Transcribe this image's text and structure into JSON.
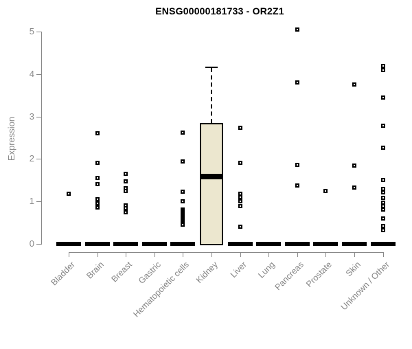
{
  "title": "ENSG00000181733 - OR2Z1",
  "y_axis": {
    "label": "Expression",
    "tick_labels": [
      "0",
      "1",
      "2",
      "3",
      "4",
      "5"
    ],
    "tick_values": [
      0,
      1,
      2,
      3,
      4,
      5
    ]
  },
  "colors": {
    "axis": "#888888",
    "tick_text": "#8a8a8a",
    "title_text": "#000000",
    "box_fill": "#ece7cf",
    "box_border": "#000000",
    "point": "#000000"
  },
  "chart_data": {
    "type": "boxplot",
    "title": "ENSG00000181733 - OR2Z1",
    "xlabel": "",
    "ylabel": "Expression",
    "ylim": [
      0,
      5
    ],
    "grid": false,
    "categories": [
      "Bladder",
      "Brain",
      "Breast",
      "Gastric",
      "Hematopoietic cells",
      "Kidney",
      "Liver",
      "Lung",
      "Pancreas",
      "Prostate",
      "Skin",
      "Unknown / Other"
    ],
    "boxes": [
      {
        "category": "Bladder",
        "q1": 0,
        "median": 0,
        "q3": 0,
        "whisker_high": 0,
        "outliers": [
          1.18
        ]
      },
      {
        "category": "Brain",
        "q1": 0,
        "median": 0,
        "q3": 0,
        "whisker_high": 0,
        "outliers": [
          2.6,
          1.91,
          1.55,
          1.41,
          1.05,
          0.95,
          0.86
        ]
      },
      {
        "category": "Breast",
        "q1": 0,
        "median": 0,
        "q3": 0,
        "whisker_high": 0,
        "outliers": [
          1.65,
          1.47,
          1.31,
          1.25,
          0.91,
          0.84,
          0.74
        ]
      },
      {
        "category": "Gastric",
        "q1": 0,
        "median": 0,
        "q3": 0,
        "whisker_high": 0,
        "outliers": []
      },
      {
        "category": "Hematopoietic cells",
        "q1": 0,
        "median": 0,
        "q3": 0,
        "whisker_high": 0,
        "outliers": [
          2.62,
          1.94,
          1.23,
          1.0,
          0.81,
          0.78,
          0.75,
          0.72,
          0.68,
          0.65,
          0.62,
          0.58,
          0.55,
          0.52,
          0.48,
          0.45
        ]
      },
      {
        "category": "Kidney",
        "q1": 0,
        "median": 1.58,
        "q3": 2.85,
        "whisker_high": 4.16,
        "outliers": []
      },
      {
        "category": "Liver",
        "q1": 0,
        "median": 0,
        "q3": 0,
        "whisker_high": 0,
        "outliers": [
          2.73,
          1.91,
          1.18,
          1.1,
          1.0,
          0.89,
          0.4
        ]
      },
      {
        "category": "Lung",
        "q1": 0,
        "median": 0,
        "q3": 0,
        "whisker_high": 0,
        "outliers": []
      },
      {
        "category": "Pancreas",
        "q1": 0,
        "median": 0,
        "q3": 0,
        "whisker_high": 0,
        "outliers": [
          5.05,
          3.8,
          1.86,
          1.38
        ]
      },
      {
        "category": "Prostate",
        "q1": 0,
        "median": 0,
        "q3": 0,
        "whisker_high": 0,
        "outliers": [
          1.25
        ]
      },
      {
        "category": "Skin",
        "q1": 0,
        "median": 0,
        "q3": 0,
        "whisker_high": 0,
        "outliers": [
          3.75,
          1.84,
          1.33
        ]
      },
      {
        "category": "Unknown / Other",
        "q1": 0,
        "median": 0,
        "q3": 0,
        "whisker_high": 0,
        "outliers": [
          4.19,
          4.09,
          3.45,
          2.78,
          2.27,
          1.5,
          1.29,
          1.21,
          1.08,
          0.97,
          0.89,
          0.81,
          0.6,
          0.42,
          0.32
        ]
      }
    ]
  }
}
